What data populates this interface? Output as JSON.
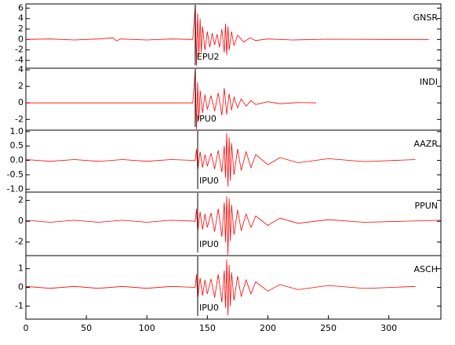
{
  "chart_data": [
    {
      "type": "line",
      "label": "GNSR",
      "phase": "EPU2",
      "pick": 140,
      "color": "#ff0000",
      "xlim": [
        0,
        343
      ],
      "ylim": [
        -5.5,
        6.8
      ],
      "yticks": [
        -4,
        -2,
        0,
        2,
        4,
        6
      ],
      "x": [
        0,
        20,
        40,
        60,
        72,
        75,
        78,
        100,
        120,
        138,
        140,
        141,
        142,
        143,
        144,
        145,
        146,
        148,
        150,
        152,
        154,
        156,
        158,
        160,
        162,
        164,
        165,
        166,
        167,
        168,
        170,
        172,
        175,
        180,
        185,
        190,
        200,
        220,
        250,
        300,
        333
      ],
      "values": [
        0,
        0.1,
        -0.1,
        0.1,
        0.3,
        -0.3,
        0.1,
        -0.1,
        0.1,
        0,
        6.5,
        -5,
        5,
        -3,
        4,
        -2.5,
        2.5,
        -2,
        1.5,
        -1.5,
        1.2,
        -1,
        1,
        -1.5,
        2,
        -2.5,
        3,
        -3,
        2.5,
        -2,
        1.5,
        -1.2,
        0.8,
        -0.5,
        0.3,
        -0.2,
        0.1,
        -0.1,
        0.05,
        0,
        0
      ]
    },
    {
      "type": "line",
      "label": "INDI",
      "phase": "IPU0",
      "pick": 140,
      "color": "#ff0000",
      "xlim": [
        0,
        343
      ],
      "ylim": [
        -3.3,
        4.2
      ],
      "yticks": [
        -2,
        0,
        2,
        4
      ],
      "x": [
        0,
        40,
        80,
        120,
        138,
        140,
        141,
        142,
        143,
        144,
        146,
        148,
        150,
        153,
        156,
        159,
        162,
        164,
        166,
        168,
        170,
        172,
        175,
        178,
        182,
        186,
        190,
        200,
        210,
        225,
        240
      ],
      "values": [
        0,
        0,
        0,
        0,
        0,
        4,
        -3.2,
        2.5,
        -2,
        1.5,
        -1.2,
        1,
        -0.8,
        0.9,
        -1,
        1.2,
        -1.5,
        1.8,
        -1.4,
        1.1,
        -0.9,
        0.7,
        -0.6,
        0.5,
        -0.4,
        0.3,
        -0.2,
        0.15,
        -0.1,
        0.05,
        0
      ]
    },
    {
      "type": "line",
      "label": "AAZR",
      "phase": "IPU0",
      "pick": 142,
      "color": "#ff0000",
      "xlim": [
        0,
        343
      ],
      "ylim": [
        -1.1,
        1.05
      ],
      "yticks": [
        {
          "value": -1,
          "label": "-1.0"
        },
        -0.5,
        {
          "value": 0,
          "label": "0.0"
        },
        0.5,
        {
          "value": 1,
          "label": "1.0"
        }
      ],
      "x": [
        0,
        20,
        40,
        60,
        80,
        100,
        120,
        140,
        141,
        142,
        144,
        146,
        148,
        150,
        153,
        156,
        159,
        162,
        164,
        165,
        166,
        167,
        168,
        169,
        170,
        172,
        175,
        178,
        182,
        186,
        190,
        200,
        210,
        225,
        250,
        280,
        322
      ],
      "values": [
        0.03,
        -0.03,
        0.03,
        -0.03,
        0.03,
        -0.03,
        0.03,
        0,
        0.4,
        -0.35,
        0.3,
        -0.25,
        0.2,
        -0.2,
        0.25,
        -0.3,
        0.35,
        -0.4,
        0.5,
        -0.6,
        0.95,
        -0.9,
        0.8,
        -0.7,
        0.6,
        -0.5,
        0.4,
        -0.35,
        0.3,
        -0.25,
        0.2,
        -0.15,
        0.1,
        -0.08,
        0.06,
        -0.04,
        0.03
      ]
    },
    {
      "type": "line",
      "label": "PPUN",
      "phase": "IPU0",
      "pick": 142,
      "color": "#ff0000",
      "xlim": [
        0,
        343
      ],
      "ylim": [
        -3.3,
        2.8
      ],
      "yticks": [
        -2,
        0,
        2
      ],
      "x": [
        0,
        20,
        40,
        60,
        80,
        100,
        120,
        140,
        141,
        142,
        144,
        146,
        148,
        150,
        153,
        156,
        159,
        162,
        164,
        165,
        166,
        167,
        168,
        169,
        170,
        172,
        175,
        178,
        182,
        186,
        190,
        200,
        210,
        225,
        250,
        280,
        343
      ],
      "values": [
        0.1,
        -0.1,
        0.1,
        -0.1,
        0.1,
        -0.1,
        0.1,
        0,
        1.2,
        -1,
        0.9,
        -0.8,
        0.7,
        -0.6,
        0.8,
        -1,
        1.2,
        -1.5,
        1.8,
        -2,
        2.4,
        -3.2,
        2.2,
        -1.9,
        1.6,
        -1.3,
        1.1,
        -0.9,
        0.7,
        -0.6,
        0.5,
        -0.4,
        0.3,
        -0.2,
        0.15,
        -0.1,
        0.1
      ]
    },
    {
      "type": "line",
      "label": "ASCH",
      "phase": "IPU0",
      "pick": 142,
      "color": "#ff0000",
      "xlim": [
        0,
        343
      ],
      "ylim": [
        -1.7,
        1.7
      ],
      "yticks": [
        -1,
        0,
        1
      ],
      "xticks": [
        0,
        50,
        100,
        150,
        200,
        250,
        300
      ],
      "x": [
        0,
        20,
        40,
        60,
        80,
        100,
        120,
        140,
        141,
        142,
        144,
        146,
        148,
        150,
        153,
        156,
        159,
        162,
        164,
        165,
        166,
        167,
        168,
        169,
        170,
        172,
        175,
        178,
        182,
        186,
        190,
        200,
        210,
        225,
        250,
        280,
        322
      ],
      "values": [
        0.05,
        -0.05,
        0.05,
        -0.05,
        0.05,
        -0.05,
        0.05,
        0,
        0.7,
        -0.6,
        0.5,
        -0.45,
        0.4,
        -0.35,
        0.45,
        -0.55,
        0.7,
        -0.8,
        0.9,
        -1.1,
        1.5,
        -1.5,
        1.2,
        -1,
        0.8,
        -0.7,
        0.6,
        -0.5,
        0.4,
        -0.35,
        0.3,
        -0.2,
        0.15,
        -0.12,
        0.1,
        -0.06,
        0.05
      ]
    }
  ]
}
